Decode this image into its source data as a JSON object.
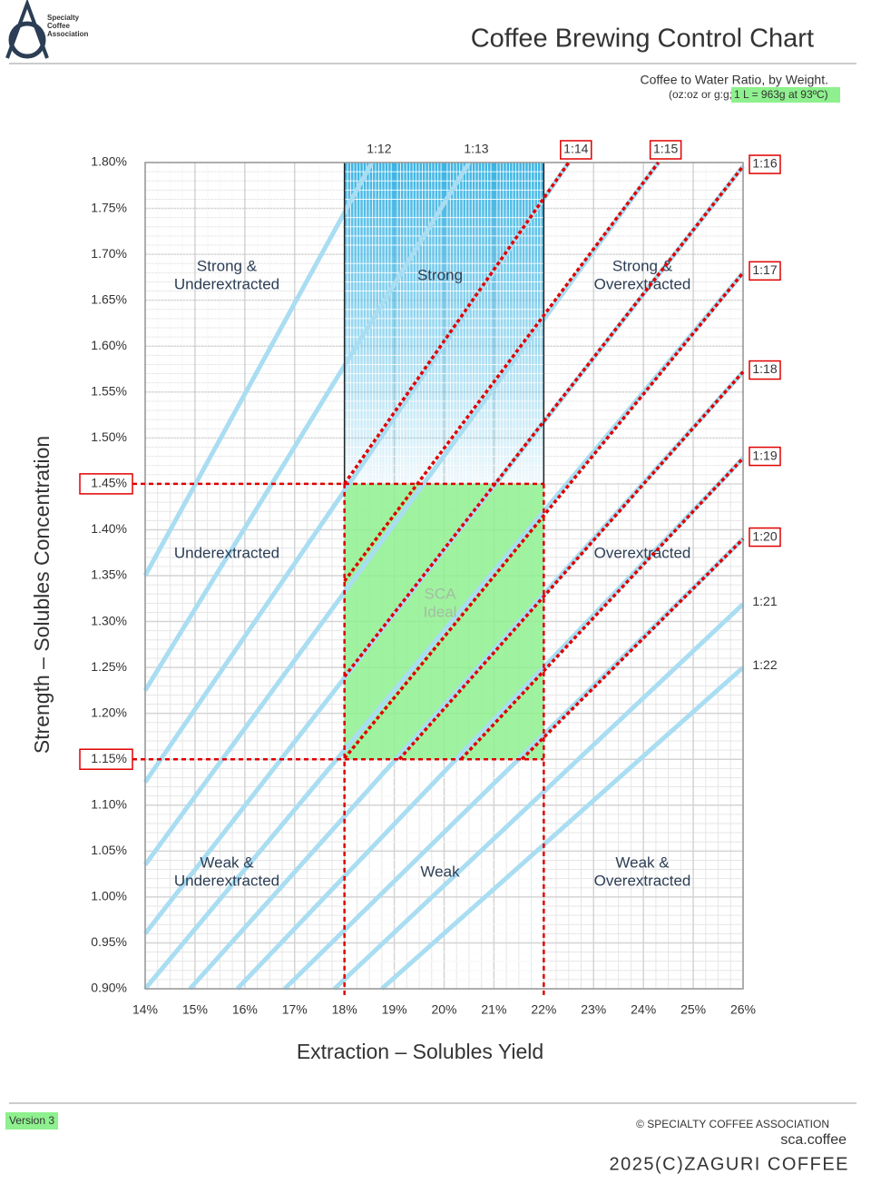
{
  "header": {
    "logo": [
      "Specialty",
      "Coffee",
      "Association"
    ],
    "subtitle": "Coffee to Water Ratio, by Weight.",
    "note": "(oz:oz or g:g;",
    "note_highlight": "1 L = 963g at 93ºC)"
  },
  "footer": {
    "version": "Version 3",
    "copyright": "© SPECIALTY COFFEE ASSOCIATION",
    "site": "sca.coffee",
    "credit": "2025(C)ZAGURI COFFEE"
  },
  "chart_data": {
    "type": "line",
    "title": "Coffee Brewing Control Chart",
    "x_label": "Extraction – Solubles Yield",
    "y_label": "Strength – Solubles Concentration",
    "xlim": [
      14,
      26
    ],
    "ylim": [
      0.9,
      1.8
    ],
    "xticks": [
      {
        "value": 14,
        "label": "14%"
      },
      {
        "value": 15,
        "label": "15%"
      },
      {
        "value": 16,
        "label": "16%"
      },
      {
        "value": 17,
        "label": "17%"
      },
      {
        "value": 18,
        "label": "18%"
      },
      {
        "value": 19,
        "label": "19%"
      },
      {
        "value": 20,
        "label": "20%"
      },
      {
        "value": 21,
        "label": "21%"
      },
      {
        "value": 22,
        "label": "22%"
      },
      {
        "value": 23,
        "label": "23%"
      },
      {
        "value": 24,
        "label": "24%"
      },
      {
        "value": 25,
        "label": "25%"
      },
      {
        "value": 26,
        "label": "26%"
      }
    ],
    "yticks": [
      {
        "value": 0.9,
        "label": "0.90%"
      },
      {
        "value": 0.95,
        "label": "0.95%"
      },
      {
        "value": 1.0,
        "label": "1.00%"
      },
      {
        "value": 1.05,
        "label": "1.05%"
      },
      {
        "value": 1.1,
        "label": "1.10%"
      },
      {
        "value": 1.15,
        "label": "1.15%"
      },
      {
        "value": 1.2,
        "label": "1.20%"
      },
      {
        "value": 1.25,
        "label": "1.25%"
      },
      {
        "value": 1.3,
        "label": "1.30%"
      },
      {
        "value": 1.35,
        "label": "1.35%"
      },
      {
        "value": 1.4,
        "label": "1.40%"
      },
      {
        "value": 1.45,
        "label": "1.45%"
      },
      {
        "value": 1.5,
        "label": "1.50%"
      },
      {
        "value": 1.55,
        "label": "1.55%"
      },
      {
        "value": 1.6,
        "label": "1.60%"
      },
      {
        "value": 1.65,
        "label": "1.65%"
      },
      {
        "value": 1.7,
        "label": "1.70%"
      },
      {
        "value": 1.75,
        "label": "1.75%"
      },
      {
        "value": 1.8,
        "label": "1.80%"
      }
    ],
    "grid": true,
    "ideal": {
      "xlim": [
        18,
        22
      ],
      "ylim": [
        1.15,
        1.45
      ],
      "color": "#8ef08e"
    },
    "strong_color": "#3ab3e3",
    "highlight_color": "#e00000",
    "series": [
      {
        "name": "1:12",
        "color": "#a9ddf2",
        "x": [
          14,
          18.55
        ],
        "values": [
          1.35,
          1.8
        ]
      },
      {
        "name": "1:13",
        "color": "#a9ddf2",
        "x": [
          14,
          20.5
        ],
        "values": [
          1.225,
          1.8
        ]
      },
      {
        "name": "1:14",
        "color": "#a9ddf2",
        "x": [
          14,
          22.5
        ],
        "values": [
          1.125,
          1.8
        ],
        "highlight": {
          "x": [
            18,
            22.5
          ],
          "values": [
            1.45,
            1.8
          ]
        }
      },
      {
        "name": "1:15",
        "color": "#a9ddf2",
        "x": [
          14,
          24.3
        ],
        "values": [
          1.035,
          1.8
        ],
        "highlight": {
          "x": [
            18,
            24.3
          ],
          "values": [
            1.344,
            1.8
          ]
        }
      },
      {
        "name": "1:16",
        "color": "#a9ddf2",
        "x": [
          14,
          26
        ],
        "values": [
          0.96,
          1.796
        ],
        "highlight": {
          "x": [
            18,
            26
          ],
          "values": [
            1.24,
            1.796
          ]
        }
      },
      {
        "name": "1:17",
        "color": "#a9ddf2",
        "x": [
          14,
          26
        ],
        "values": [
          0.9,
          1.68
        ],
        "highlight": {
          "x": [
            18,
            26
          ],
          "values": [
            1.151,
            1.68
          ]
        }
      },
      {
        "name": "1:18",
        "color": "#a9ddf2",
        "x": [
          14.9,
          26
        ],
        "values": [
          0.9,
          1.572
        ],
        "highlight": {
          "x": [
            19.1,
            26
          ],
          "values": [
            1.15,
            1.572
          ]
        }
      },
      {
        "name": "1:19",
        "color": "#a9ddf2",
        "x": [
          15.85,
          26
        ],
        "values": [
          0.9,
          1.478
        ],
        "highlight": {
          "x": [
            20.34,
            26
          ],
          "values": [
            1.15,
            1.478
          ]
        }
      },
      {
        "name": "1:20",
        "color": "#a9ddf2",
        "x": [
          16.8,
          26
        ],
        "values": [
          0.9,
          1.39
        ],
        "highlight": {
          "x": [
            21.56,
            26
          ],
          "values": [
            1.15,
            1.39
          ]
        }
      },
      {
        "name": "1:21",
        "color": "#a9ddf2",
        "x": [
          17.8,
          26
        ],
        "values": [
          0.9,
          1.319
        ]
      },
      {
        "name": "1:22",
        "color": "#a9ddf2",
        "x": [
          18.75,
          26
        ],
        "values": [
          0.9,
          1.25
        ]
      }
    ],
    "zones": [
      [
        "Strong &",
        "Underextracted"
      ],
      [
        "Strong"
      ],
      [
        "Strong &",
        "Overextracted"
      ],
      [
        "Underextracted"
      ],
      [
        "SCA",
        "Ideal"
      ],
      [
        "Overextracted"
      ],
      [
        "Weak &",
        "Underextracted"
      ],
      [
        "Weak"
      ],
      [
        "Weak &",
        "Overextracted"
      ]
    ]
  }
}
